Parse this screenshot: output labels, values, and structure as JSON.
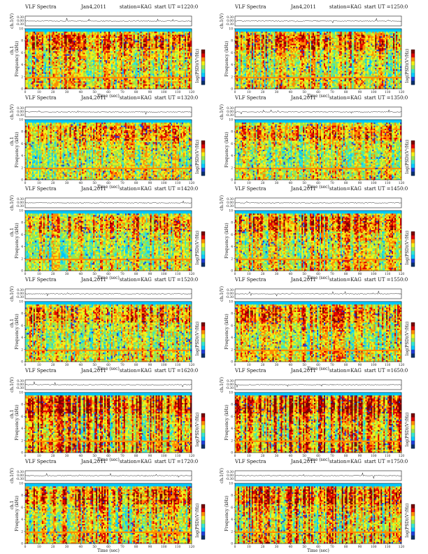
{
  "chart_data": [
    {
      "type": "heatmap",
      "title": "VLF Spectra",
      "date": "Jan4,2011",
      "station": "station=KAG",
      "start": "start UT =1220:0",
      "channel_label": "ch.1(V)",
      "spec_ylabel": "ch.1",
      "freq_label": "Frequency (kHz)",
      "xlabel": "Time (sec)",
      "cb_label": "log(PSD)(V²/Hz)",
      "xlim": [
        0,
        120
      ],
      "xticks": [
        0,
        10,
        20,
        30,
        40,
        50,
        60,
        70,
        80,
        90,
        100,
        110,
        120
      ],
      "ylim_khz": [
        0,
        10
      ],
      "yticks": [
        0,
        2,
        4,
        6,
        8,
        10
      ],
      "waveform_yticks": [
        "0.30",
        "0.00",
        "-0.30"
      ],
      "intensity": 0.55,
      "seed": 11
    },
    {
      "type": "heatmap",
      "title": "VLF Spectra",
      "date": "Jan4,2011",
      "station": "station=KAG",
      "start": "start UT =1250:0",
      "channel_label": "ch.1(V)",
      "spec_ylabel": "",
      "freq_label": "Frequency (kHz)",
      "xlabel": "Time (sec)",
      "cb_label": "log(PSD)(V²/Hz)",
      "xlim": [
        0,
        120
      ],
      "xticks": [
        0,
        10,
        20,
        30,
        40,
        50,
        60,
        70,
        80,
        90,
        100,
        110,
        120
      ],
      "ylim_khz": [
        0,
        10
      ],
      "yticks": [
        0,
        2,
        4,
        6,
        8,
        10
      ],
      "waveform_yticks": [
        "0.30",
        "0.00",
        "-0.30"
      ],
      "intensity": 0.55,
      "seed": 23
    },
    {
      "type": "heatmap",
      "title": "VLF Spectra",
      "date": "Jan4,2011",
      "station": "station=KAG",
      "start": "start UT =1320:0",
      "channel_label": "ch.1(V)",
      "spec_ylabel": "ch.1",
      "freq_label": "Frequency (kHz)",
      "xlabel": "Time (sec)",
      "cb_label": "log(PSD)(V²/Hz)",
      "xlim": [
        0,
        120
      ],
      "xticks": [
        0,
        10,
        20,
        30,
        40,
        50,
        60,
        70,
        80,
        90,
        100,
        110,
        120
      ],
      "ylim_khz": [
        0,
        10
      ],
      "yticks": [
        0,
        2,
        4,
        6,
        8,
        10
      ],
      "waveform_yticks": [
        "0.30",
        "0.00",
        "-0.30"
      ],
      "intensity": 0.45,
      "seed": 37
    },
    {
      "type": "heatmap",
      "title": "VLF Spectra",
      "date": "Jan4,2011",
      "station": "station=KAG",
      "start": "start UT =1350:0",
      "channel_label": "ch.1(V)",
      "spec_ylabel": "",
      "freq_label": "Frequency (kHz)",
      "xlabel": "Time (sec)",
      "cb_label": "log(PSD)(V²/Hz)",
      "xlim": [
        0,
        120
      ],
      "xticks": [
        0,
        10,
        20,
        30,
        40,
        50,
        60,
        70,
        80,
        90,
        100,
        110,
        120
      ],
      "ylim_khz": [
        0,
        10
      ],
      "yticks": [
        0,
        2,
        4,
        6,
        8,
        10
      ],
      "waveform_yticks": [
        "0.30",
        "0.00",
        "-0.30"
      ],
      "intensity": 0.45,
      "seed": 41
    },
    {
      "type": "heatmap",
      "title": "VLF Spectra",
      "date": "Jan4,2011",
      "station": "station=KAG",
      "start": "start UT =1420:0",
      "channel_label": "ch.1(V)",
      "spec_ylabel": "ch.1",
      "freq_label": "Frequency (kHz)",
      "xlabel": "Time (sec)",
      "cb_label": "log(PSD)(V²/Hz)",
      "xlim": [
        0,
        120
      ],
      "xticks": [
        0,
        10,
        20,
        30,
        40,
        50,
        60,
        70,
        80,
        90,
        100,
        110,
        120
      ],
      "ylim_khz": [
        0,
        10
      ],
      "yticks": [
        0,
        2,
        4,
        6,
        8,
        10
      ],
      "waveform_yticks": [
        "0.30",
        "0.00",
        "-0.30"
      ],
      "intensity": 0.5,
      "seed": 53
    },
    {
      "type": "heatmap",
      "title": "VLF Spectra",
      "date": "Jan4,2011",
      "station": "station=KAG",
      "start": "start UT =1450:0",
      "channel_label": "ch.1(V)",
      "spec_ylabel": "",
      "freq_label": "Frequency (kHz)",
      "xlabel": "Time (sec)",
      "cb_label": "log(PSD)(V²/Hz)",
      "xlim": [
        0,
        120
      ],
      "xticks": [
        0,
        10,
        20,
        30,
        40,
        50,
        60,
        70,
        80,
        90,
        100,
        110,
        120
      ],
      "ylim_khz": [
        0,
        10
      ],
      "yticks": [
        0,
        2,
        4,
        6,
        8,
        10
      ],
      "waveform_yticks": [
        "0.30",
        "0.00",
        "-0.30"
      ],
      "intensity": 0.55,
      "seed": 67
    },
    {
      "type": "heatmap",
      "title": "VLF Spectra",
      "date": "Jan4,2011",
      "station": "station=KAG",
      "start": "start UT =1520:0",
      "channel_label": "ch.1(V)",
      "spec_ylabel": "ch.1",
      "freq_label": "Frequency (kHz)",
      "xlabel": "Time (sec)",
      "cb_label": "log(PSD)(V²/Hz)",
      "xlim": [
        0,
        120
      ],
      "xticks": [
        0,
        10,
        20,
        30,
        40,
        50,
        60,
        70,
        80,
        90,
        100,
        110,
        120
      ],
      "ylim_khz": [
        0,
        10
      ],
      "yticks": [
        0,
        2,
        4,
        6,
        8,
        10
      ],
      "waveform_yticks": [
        "0.30",
        "0.00",
        "-0.30"
      ],
      "intensity": 0.5,
      "seed": 71
    },
    {
      "type": "heatmap",
      "title": "VLF Spectra",
      "date": "Jan4,2011",
      "station": "station=KAG",
      "start": "start UT =1550:0",
      "channel_label": "ch.1(V)",
      "spec_ylabel": "",
      "freq_label": "Frequency (kHz)",
      "xlabel": "Time (sec)",
      "cb_label": "log(PSD)(V²/Hz)",
      "xlim": [
        0,
        120
      ],
      "xticks": [
        0,
        10,
        20,
        30,
        40,
        50,
        60,
        70,
        80,
        90,
        100,
        110,
        120
      ],
      "ylim_khz": [
        0,
        10
      ],
      "yticks": [
        0,
        2,
        4,
        6,
        8,
        10
      ],
      "waveform_yticks": [
        "0.30",
        "0.00",
        "-0.30"
      ],
      "intensity": 0.55,
      "seed": 83
    },
    {
      "type": "heatmap",
      "title": "VLF Spectra",
      "date": "Jan4,2011",
      "station": "station=KAG",
      "start": "start UT =1620:0",
      "channel_label": "ch.1(V)",
      "spec_ylabel": "ch.1",
      "freq_label": "Frequency (kHz)",
      "xlabel": "Time (sec)",
      "cb_label": "log(PSD)(V²/Hz)",
      "xlim": [
        0,
        120
      ],
      "xticks": [
        0,
        10,
        20,
        30,
        40,
        50,
        60,
        70,
        80,
        90,
        100,
        110,
        120
      ],
      "ylim_khz": [
        0,
        10
      ],
      "yticks": [
        0,
        2,
        4,
        6,
        8,
        10
      ],
      "waveform_yticks": [
        "0.30",
        "0.00",
        "-0.30"
      ],
      "intensity": 0.7,
      "seed": 97
    },
    {
      "type": "heatmap",
      "title": "VLF Spectra",
      "date": "Jan4,2011",
      "station": "station=KAG",
      "start": "start UT =1650:0",
      "channel_label": "ch.1(V)",
      "spec_ylabel": "",
      "freq_label": "Frequency (kHz)",
      "xlabel": "Time (sec)",
      "cb_label": "log(PSD)(V²/Hz)",
      "xlim": [
        0,
        120
      ],
      "xticks": [
        0,
        10,
        20,
        30,
        40,
        50,
        60,
        70,
        80,
        90,
        100,
        110,
        120
      ],
      "ylim_khz": [
        0,
        10
      ],
      "yticks": [
        0,
        2,
        4,
        6,
        8,
        10
      ],
      "waveform_yticks": [
        "0.30",
        "0.00",
        "-0.30"
      ],
      "intensity": 0.75,
      "seed": 103
    },
    {
      "type": "heatmap",
      "title": "VLF Spectra",
      "date": "Jan4,2011",
      "station": "station=KAG",
      "start": "start UT =1720:0",
      "channel_label": "ch.1(V)",
      "spec_ylabel": "ch.1",
      "freq_label": "Frequency (kHz)",
      "xlabel": "Time (sec)",
      "cb_label": "log(PSD)(V²/Hz)",
      "xlim": [
        0,
        120
      ],
      "xticks": [
        0,
        10,
        20,
        30,
        40,
        50,
        60,
        70,
        80,
        90,
        100,
        110,
        120
      ],
      "ylim_khz": [
        0,
        10
      ],
      "yticks": [
        0,
        2,
        4,
        6,
        8,
        10
      ],
      "waveform_yticks": [
        "0.30",
        "0.00",
        "-0.30"
      ],
      "intensity": 0.6,
      "seed": 113
    },
    {
      "type": "heatmap",
      "title": "VLF Spectra",
      "date": "Jan4,2011",
      "station": "station=KAG",
      "start": "start UT =1750:0",
      "channel_label": "ch.1(V)",
      "spec_ylabel": "",
      "freq_label": "Frequency (kHz)",
      "xlabel": "Time (sec)",
      "cb_label": "log(PSD)(V²/Hz)",
      "xlim": [
        0,
        120
      ],
      "xticks": [
        0,
        10,
        20,
        30,
        40,
        50,
        60,
        70,
        80,
        90,
        100,
        110,
        120
      ],
      "ylim_khz": [
        0,
        10
      ],
      "yticks": [
        0,
        2,
        4,
        6,
        8,
        10
      ],
      "waveform_yticks": [
        "0.30",
        "0.00",
        "-0.30"
      ],
      "intensity": 0.65,
      "seed": 127
    }
  ],
  "colormap": [
    "#08306b",
    "#1f3fd8",
    "#00c8ff",
    "#36e5ce",
    "#9be64a",
    "#f2f21a",
    "#ff8c00",
    "#e00000",
    "#7a0000"
  ],
  "background_color": "#36e5ce",
  "axis_color": "#111111"
}
